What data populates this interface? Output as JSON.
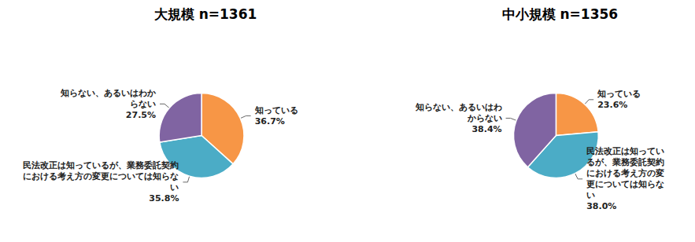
{
  "chart_data": [
    {
      "type": "pie",
      "title": "大規模 n=1361",
      "categories": [
        "知っている",
        "民法改正は知っているが、業務委託契約における考え方の変更については知らない",
        "知らない、あるいはわからない"
      ],
      "values": [
        36.7,
        35.8,
        27.5
      ],
      "value_labels": [
        "36.7%",
        "35.8%",
        "27.5%"
      ],
      "colors": [
        "#f79646",
        "#4bacc6",
        "#8064a2"
      ],
      "data_labels": true
    },
    {
      "type": "pie",
      "title": "中小規模 n=1356",
      "categories": [
        "知っている",
        "民法改正は知っているが、業務委託契約における考え方の変更については知らない",
        "知らない、あるいはわからない"
      ],
      "values": [
        23.6,
        38.0,
        38.4
      ],
      "value_labels": [
        "23.6%",
        "38.0%",
        "38.4%"
      ],
      "colors": [
        "#f79646",
        "#4bacc6",
        "#8064a2"
      ],
      "data_labels": true
    }
  ]
}
